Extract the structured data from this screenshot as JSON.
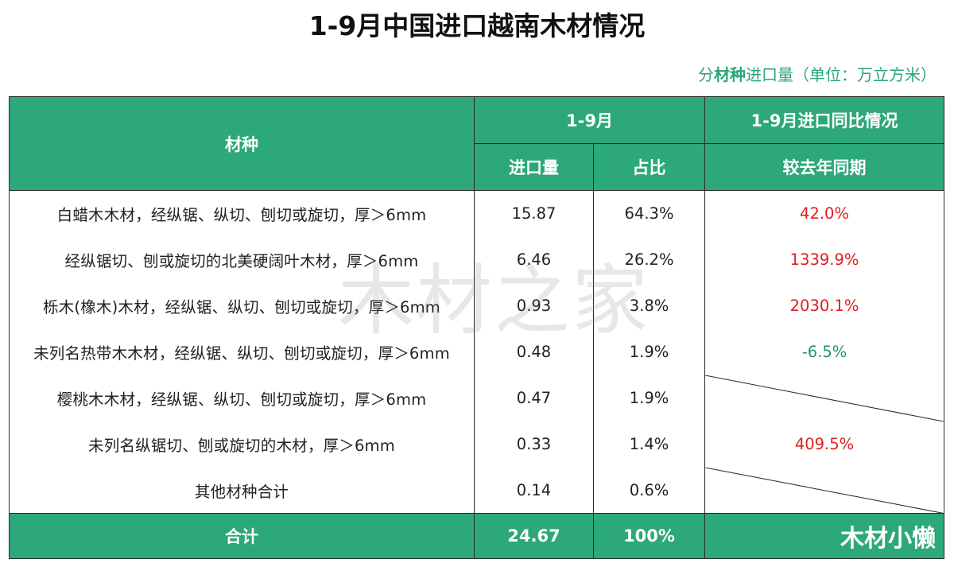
{
  "title": "1-9月中国进口越南木材情况",
  "subtitle": {
    "prefix": "分",
    "bold": "材种",
    "suffix": "进口量（单位：万立方米）"
  },
  "header": {
    "col_name": "材种",
    "group_period": "1-9月",
    "group_yoy": "1-9月进口同比情况",
    "col_volume": "进口量",
    "col_share": "占比",
    "col_yoy": "较去年同期"
  },
  "rows": [
    {
      "name": "白蜡木木材，经纵锯、纵切、刨切或旋切，厚＞6mm",
      "volume": "15.87",
      "share": "64.3%",
      "yoy": "42.0%",
      "yoy_color": "#e02020"
    },
    {
      "name": "经纵锯切、刨或旋切的北美硬阔叶木材，厚＞6mm",
      "volume": "6.46",
      "share": "26.2%",
      "yoy": "1339.9%",
      "yoy_color": "#e02020"
    },
    {
      "name": "栎木(橡木)木材，经纵锯、纵切、刨切或旋切，厚＞6mm",
      "volume": "0.93",
      "share": "3.8%",
      "yoy": "2030.1%",
      "yoy_color": "#e02020"
    },
    {
      "name": "未列名热带木木材，经纵锯、纵切、刨切或旋切，厚＞6mm",
      "volume": "0.48",
      "share": "1.9%",
      "yoy": "-6.5%",
      "yoy_color": "#1e9a5e"
    },
    {
      "name": "樱桃木木材，经纵锯、纵切、刨切或旋切，厚＞6mm",
      "volume": "0.47",
      "share": "1.9%",
      "yoy": "",
      "yoy_color": ""
    },
    {
      "name": "未列名纵锯切、刨或旋切的木材，厚＞6mm",
      "volume": "0.33",
      "share": "1.4%",
      "yoy": "409.5%",
      "yoy_color": "#e02020"
    },
    {
      "name": "其他材种合计",
      "volume": "0.14",
      "share": "0.6%",
      "yoy": "",
      "yoy_color": ""
    }
  ],
  "total": {
    "label": "合计",
    "volume": "24.67",
    "share": "100%"
  },
  "brand": "木材小懒",
  "watermark": "木材之家"
}
